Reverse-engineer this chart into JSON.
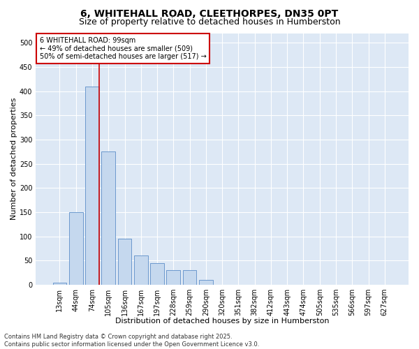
{
  "title_line1": "6, WHITEHALL ROAD, CLEETHORPES, DN35 0PT",
  "title_line2": "Size of property relative to detached houses in Humberston",
  "xlabel": "Distribution of detached houses by size in Humberston",
  "ylabel": "Number of detached properties",
  "categories": [
    "13sqm",
    "44sqm",
    "74sqm",
    "105sqm",
    "136sqm",
    "167sqm",
    "197sqm",
    "228sqm",
    "259sqm",
    "290sqm",
    "320sqm",
    "351sqm",
    "382sqm",
    "412sqm",
    "443sqm",
    "474sqm",
    "505sqm",
    "535sqm",
    "566sqm",
    "597sqm",
    "627sqm"
  ],
  "values": [
    4,
    150,
    410,
    275,
    95,
    60,
    45,
    30,
    30,
    10,
    0,
    0,
    0,
    0,
    0,
    0,
    0,
    0,
    0,
    0,
    0
  ],
  "bar_color": "#c5d8ee",
  "bar_edge_color": "#5b8dc8",
  "vline_color": "#cc0000",
  "vline_x_index": 2,
  "annotation_text": "6 WHITEHALL ROAD: 99sqm\n← 49% of detached houses are smaller (509)\n50% of semi-detached houses are larger (517) →",
  "annotation_box_color": "#cc0000",
  "ylim_max": 520,
  "yticks": [
    0,
    50,
    100,
    150,
    200,
    250,
    300,
    350,
    400,
    450,
    500
  ],
  "plot_bg_color": "#dde8f5",
  "grid_color": "#ffffff",
  "footer": "Contains HM Land Registry data © Crown copyright and database right 2025.\nContains public sector information licensed under the Open Government Licence v3.0.",
  "title_fontsize": 10,
  "subtitle_fontsize": 9,
  "axis_label_fontsize": 8,
  "tick_fontsize": 7,
  "annotation_fontsize": 7,
  "footer_fontsize": 6
}
